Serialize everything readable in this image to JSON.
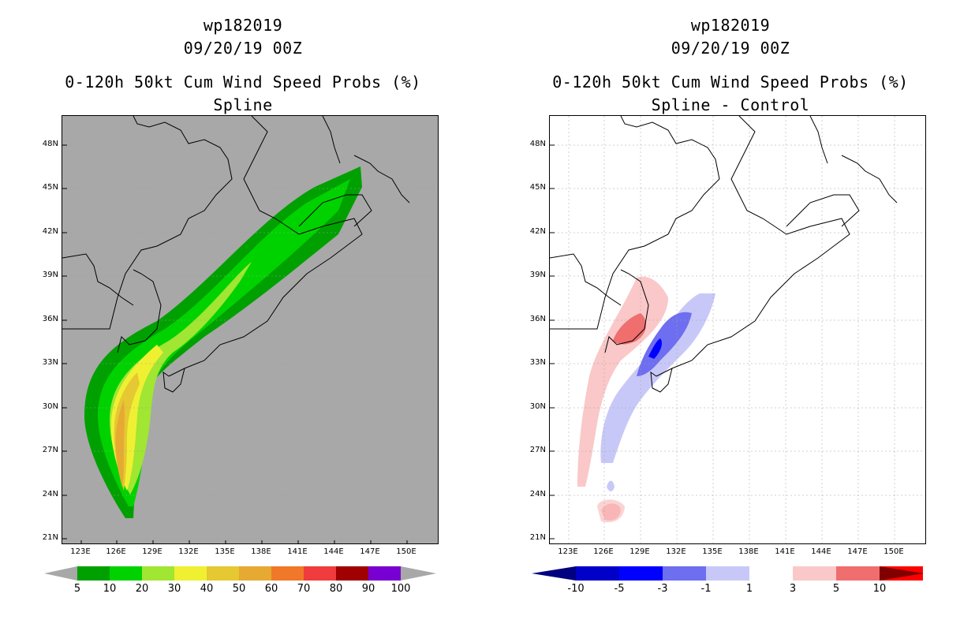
{
  "left": {
    "storm_id": "wp182019",
    "datetime": "09/20/19 00Z",
    "product": "0-120h 50kt Cum Wind Speed Probs (%)",
    "subtitle": "Spline",
    "colorbar_labels": [
      "5",
      "10",
      "20",
      "30",
      "40",
      "50",
      "60",
      "70",
      "80",
      "90",
      "100"
    ],
    "colorbar_colors": [
      "#00a000",
      "#00d200",
      "#a0e632",
      "#f0f032",
      "#e6c832",
      "#e6aa32",
      "#f07828",
      "#f03c3c",
      "#a00000",
      "#7800d2"
    ]
  },
  "right": {
    "storm_id": "wp182019",
    "datetime": "09/20/19 00Z",
    "product": "0-120h 50kt Cum Wind Speed Probs (%)",
    "subtitle": "Spline - Control",
    "colorbar_labels": [
      "-10",
      "-5",
      "-3",
      "-1",
      "1",
      "3",
      "5",
      "10"
    ],
    "colorbar_colors": [
      "#0000c8",
      "#0000ff",
      "#6e6ef0",
      "#c8c8f8",
      "#ffffff",
      "#fac8c8",
      "#f06e6e",
      "#ff0000"
    ]
  },
  "axes": {
    "lat_ticks": [
      "48N",
      "45N",
      "42N",
      "39N",
      "36N",
      "33N",
      "30N",
      "27N",
      "24N",
      "21N"
    ],
    "lon_ticks": [
      "123E",
      "126E",
      "129E",
      "132E",
      "135E",
      "138E",
      "141E",
      "144E",
      "147E",
      "150E"
    ]
  },
  "colors": {
    "land_bg": "#a8a8a8",
    "coast": "#000000",
    "grid": "#a0a0a0"
  }
}
